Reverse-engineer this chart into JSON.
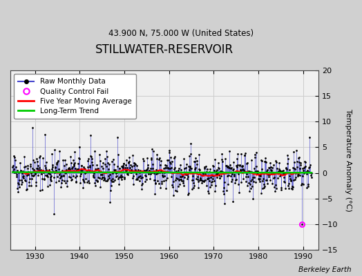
{
  "title": "STILLWATER-RESERVOIR",
  "subtitle": "43.900 N, 75.000 W (United States)",
  "ylabel": "Temperature Anomaly (°C)",
  "credit": "Berkeley Earth",
  "xlim": [
    1924.5,
    1993.5
  ],
  "ylim": [
    -15,
    20
  ],
  "yticks": [
    -15,
    -10,
    -5,
    0,
    5,
    10,
    15,
    20
  ],
  "xticks": [
    1930,
    1940,
    1950,
    1960,
    1970,
    1980,
    1990
  ],
  "fig_bg_color": "#d0d0d0",
  "plot_bg_color": "#f0f0f0",
  "seed": 42,
  "start_year": 1925,
  "end_year": 1992,
  "noise_std": 1.8,
  "qc_fail_year": 1989.75,
  "qc_fail_value": -10.0,
  "long_term_trend_value": 0.0,
  "moving_avg_window": 60
}
